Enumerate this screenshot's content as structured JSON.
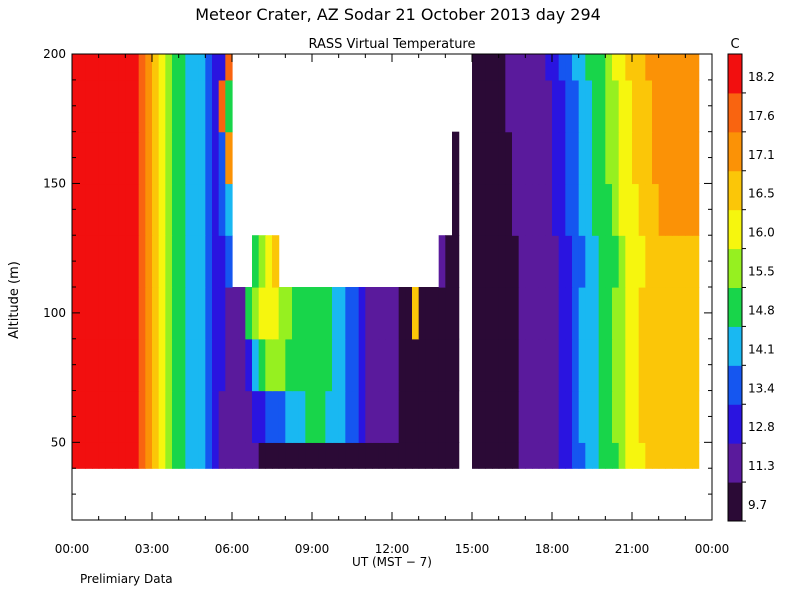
{
  "chart_data": {
    "type": "heatmap",
    "title": "Meteor Crater, AZ  Sodar  21 October 2013  day 294",
    "subtitle": "RASS Virtual Temperature",
    "xlabel": "UT  (MST − 7)",
    "ylabel": "Altitude (m)",
    "x_ticks": [
      "00:00",
      "03:00",
      "06:00",
      "09:00",
      "12:00",
      "15:00",
      "18:00",
      "21:00",
      "00:00"
    ],
    "xlim_hours": [
      0,
      24
    ],
    "y_ticks": [
      50,
      100,
      150,
      200
    ],
    "ylim": [
      20,
      200
    ],
    "colorbar": {
      "unit": "C",
      "levels": [
        9.7,
        11.3,
        12.8,
        13.4,
        14.1,
        14.8,
        15.5,
        16.0,
        16.5,
        17.1,
        17.6,
        18.2
      ],
      "colors": [
        "#2b0a36",
        "#5a1a9c",
        "#2a14e0",
        "#1556f0",
        "#19b8f2",
        "#18d54a",
        "#96f020",
        "#f6f60e",
        "#fbc608",
        "#fb9206",
        "#f96410",
        "#f20f0f"
      ]
    },
    "grid": false,
    "column_step_hours": 0.25,
    "altitude_levels": [
      40,
      60,
      80,
      100,
      120,
      140,
      160,
      180,
      200
    ],
    "data_rows_by_altitude": [
      [
        18.7,
        18.7,
        18.7,
        18.7,
        18.7,
        18.7,
        18.7,
        18.7,
        18.7,
        18.4,
        17.9,
        17.3,
        16.8,
        16.3,
        15.8,
        15.4,
        15.0,
        14.7,
        14.4,
        14.1,
        13.7,
        13.1,
        12.6,
        12.2,
        11.8,
        11.6,
        11.4,
        11.3,
        11.2,
        11.2,
        11.2,
        11.2,
        11.2,
        11.2,
        11.2,
        11.2,
        11.2,
        11.2,
        11.2,
        11.2,
        11.2,
        11.2,
        11.2,
        11.2,
        11.2,
        11.2,
        11.2,
        11.2,
        11.1,
        11.0,
        10.9,
        10.8,
        10.7,
        10.6,
        10.5,
        10.4,
        10.3,
        10.1,
        null,
        null,
        10.0,
        10.2,
        10.4,
        10.6,
        10.8,
        11.0,
        11.2,
        11.4,
        11.6,
        11.8,
        12.0,
        12.3,
        12.6,
        12.9,
        13.2,
        13.6,
        14.0,
        14.3,
        14.6,
        14.9,
        15.1,
        15.4,
        15.7,
        16.0,
        16.2,
        16.4,
        16.6,
        16.8,
        16.9,
        16.9,
        16.9,
        16.9,
        16.9,
        16.9
      ],
      [
        18.7,
        18.7,
        18.7,
        18.7,
        18.7,
        18.7,
        18.7,
        18.7,
        18.7,
        18.3,
        17.9,
        17.4,
        16.8,
        16.3,
        15.8,
        15.4,
        15.0,
        14.7,
        14.4,
        14.1,
        13.7,
        13.1,
        12.7,
        12.4,
        12.2,
        12.0,
        12.3,
        12.8,
        13.1,
        13.4,
        13.6,
        13.8,
        14.1,
        14.3,
        14.6,
        14.8,
        14.9,
        14.8,
        14.7,
        14.4,
        14.1,
        13.7,
        13.4,
        13.1,
        12.7,
        12.3,
        12.0,
        11.7,
        11.4,
        11.2,
        11.0,
        10.8,
        10.6,
        10.4,
        10.3,
        10.1,
        10.0,
        9.9,
        null,
        null,
        9.9,
        10.1,
        10.3,
        10.5,
        10.8,
        11.0,
        11.2,
        11.4,
        11.6,
        11.8,
        12.1,
        12.4,
        12.7,
        13.0,
        13.3,
        13.7,
        14.1,
        14.4,
        14.7,
        15.0,
        15.3,
        15.6,
        15.9,
        16.1,
        16.3,
        16.5,
        16.7,
        16.9,
        17.0,
        17.0,
        17.0,
        17.0,
        17.0,
        17.0
      ],
      [
        18.7,
        18.7,
        18.7,
        18.7,
        18.7,
        18.7,
        18.7,
        18.7,
        18.7,
        18.4,
        17.9,
        17.3,
        16.8,
        16.3,
        15.8,
        15.4,
        15.0,
        14.7,
        14.4,
        14.1,
        13.7,
        13.1,
        12.9,
        12.7,
        12.5,
        12.3,
        13.3,
        14.6,
        15.3,
        15.6,
        15.6,
        15.5,
        15.4,
        15.3,
        15.2,
        15.2,
        15.1,
        15.0,
        14.8,
        14.5,
        14.2,
        13.8,
        13.4,
        13.0,
        12.6,
        12.3,
        12.0,
        11.7,
        11.4,
        11.2,
        11.0,
        10.8,
        10.6,
        10.4,
        10.3,
        10.1,
        10.0,
        9.9,
        null,
        null,
        9.9,
        10.1,
        10.3,
        10.5,
        10.8,
        11.0,
        11.2,
        11.4,
        11.6,
        11.8,
        12.1,
        12.4,
        12.7,
        13.0,
        13.3,
        13.7,
        14.1,
        14.4,
        14.7,
        15.0,
        15.3,
        15.6,
        15.9,
        16.1,
        16.3,
        16.5,
        16.7,
        16.9,
        17.0,
        17.0,
        17.0,
        17.0,
        17.0,
        17.0
      ],
      [
        18.7,
        18.7,
        18.7,
        18.7,
        18.7,
        18.7,
        18.7,
        18.7,
        18.7,
        18.4,
        17.9,
        17.3,
        16.8,
        16.3,
        15.8,
        15.4,
        15.0,
        14.7,
        14.4,
        14.1,
        13.7,
        13.1,
        12.9,
        12.7,
        12.5,
        12.3,
        14.9,
        15.8,
        16.2,
        16.3,
        16.2,
        15.9,
        15.6,
        15.4,
        15.3,
        15.2,
        15.1,
        15.0,
        14.8,
        14.5,
        14.2,
        13.8,
        13.4,
        13.0,
        12.6,
        12.3,
        12.0,
        11.7,
        11.4,
        11.2,
        11.0,
        17.0,
        10.6,
        10.4,
        10.3,
        10.1,
        10.0,
        9.9,
        null,
        null,
        9.9,
        10.1,
        10.3,
        10.5,
        10.8,
        11.0,
        11.2,
        11.4,
        11.6,
        11.8,
        12.1,
        12.4,
        12.7,
        13.0,
        13.3,
        13.7,
        14.1,
        14.4,
        14.7,
        15.0,
        15.3,
        15.6,
        15.9,
        16.1,
        16.3,
        16.5,
        16.7,
        16.9,
        17.0,
        17.0,
        17.0,
        17.0,
        17.0,
        17.0
      ],
      [
        18.7,
        18.7,
        18.7,
        18.7,
        18.7,
        18.7,
        18.7,
        18.7,
        18.7,
        18.4,
        17.9,
        17.3,
        16.8,
        16.3,
        15.8,
        15.4,
        15.0,
        14.7,
        14.4,
        14.1,
        13.7,
        13.1,
        13.2,
        13.4,
        null,
        null,
        null,
        15.2,
        15.6,
        16.1,
        16.6,
        null,
        null,
        null,
        null,
        null,
        null,
        null,
        null,
        null,
        null,
        null,
        null,
        null,
        null,
        null,
        null,
        null,
        null,
        null,
        null,
        null,
        null,
        null,
        null,
        12.0,
        11.0,
        10.0,
        null,
        null,
        10.0,
        10.2,
        10.4,
        10.6,
        10.8,
        11.0,
        11.2,
        11.4,
        11.6,
        11.8,
        12.0,
        12.3,
        12.6,
        12.9,
        13.2,
        13.6,
        14.0,
        14.3,
        14.6,
        14.9,
        15.1,
        15.4,
        15.7,
        16.0,
        16.2,
        16.4,
        16.6,
        16.8,
        16.9,
        16.9,
        16.9,
        16.9,
        16.9,
        16.9
      ],
      [
        18.7,
        18.7,
        18.7,
        18.7,
        18.7,
        18.7,
        18.7,
        18.7,
        18.7,
        18.4,
        17.9,
        17.3,
        16.8,
        16.3,
        15.8,
        15.4,
        15.0,
        14.7,
        14.4,
        14.1,
        13.7,
        13.1,
        13.9,
        14.4,
        null,
        null,
        null,
        null,
        null,
        null,
        null,
        null,
        null,
        null,
        null,
        null,
        null,
        null,
        null,
        null,
        null,
        null,
        null,
        null,
        null,
        null,
        null,
        null,
        null,
        null,
        null,
        null,
        null,
        null,
        null,
        null,
        null,
        10.3,
        null,
        null,
        10.1,
        10.3,
        10.5,
        10.7,
        10.9,
        11.1,
        11.3,
        11.5,
        11.7,
        11.9,
        12.2,
        12.5,
        12.8,
        13.1,
        13.4,
        13.8,
        14.2,
        14.5,
        14.8,
        15.1,
        15.4,
        15.7,
        16.0,
        16.2,
        16.4,
        16.6,
        16.8,
        17.0,
        17.1,
        17.1,
        17.1,
        17.1,
        17.1,
        17.1
      ],
      [
        18.7,
        18.7,
        18.7,
        18.7,
        18.7,
        18.7,
        18.7,
        18.7,
        18.7,
        18.4,
        17.9,
        17.3,
        16.8,
        16.3,
        15.8,
        15.4,
        15.0,
        14.7,
        14.4,
        14.1,
        13.7,
        13.1,
        13.6,
        17.5,
        null,
        null,
        null,
        null,
        null,
        null,
        null,
        null,
        null,
        null,
        null,
        null,
        null,
        null,
        null,
        null,
        null,
        null,
        null,
        null,
        null,
        null,
        null,
        null,
        null,
        null,
        null,
        null,
        null,
        null,
        null,
        null,
        null,
        10.3,
        null,
        null,
        10.2,
        10.4,
        10.6,
        10.8,
        11.0,
        11.2,
        11.4,
        11.6,
        11.8,
        12.0,
        12.3,
        12.6,
        12.9,
        13.2,
        13.5,
        13.9,
        14.3,
        14.6,
        14.9,
        15.2,
        15.5,
        15.8,
        16.1,
        16.3,
        16.5,
        16.7,
        16.9,
        17.1,
        17.2,
        17.2,
        17.2,
        17.2,
        17.2,
        17.2
      ],
      [
        18.7,
        18.7,
        18.7,
        18.7,
        18.7,
        18.7,
        18.7,
        18.7,
        18.7,
        18.4,
        17.9,
        17.3,
        16.8,
        16.3,
        15.8,
        15.4,
        15.0,
        14.7,
        14.4,
        14.1,
        13.7,
        13.1,
        17.8,
        15.2,
        null,
        null,
        null,
        null,
        null,
        null,
        null,
        null,
        null,
        null,
        null,
        null,
        null,
        null,
        null,
        null,
        null,
        null,
        null,
        null,
        null,
        null,
        null,
        null,
        null,
        null,
        null,
        null,
        null,
        null,
        null,
        null,
        null,
        null,
        null,
        null,
        10.3,
        10.5,
        10.7,
        10.9,
        11.1,
        11.3,
        11.5,
        11.7,
        11.9,
        12.1,
        12.4,
        12.7,
        13.0,
        13.3,
        13.6,
        14.0,
        14.4,
        14.7,
        15.0,
        15.3,
        15.6,
        15.9,
        16.2,
        16.4,
        16.6,
        16.8,
        17.0,
        17.2,
        17.3,
        17.3,
        17.3,
        17.3,
        17.3,
        17.3
      ],
      [
        18.7,
        18.7,
        18.7,
        18.7,
        18.7,
        18.7,
        18.7,
        18.7,
        18.7,
        18.4,
        17.9,
        17.3,
        16.8,
        16.3,
        15.8,
        15.4,
        15.0,
        14.7,
        14.4,
        14.1,
        13.7,
        13.1,
        13.1,
        18.0,
        null,
        null,
        null,
        null,
        null,
        null,
        null,
        null,
        null,
        null,
        null,
        null,
        null,
        null,
        null,
        null,
        null,
        null,
        null,
        null,
        null,
        null,
        null,
        null,
        null,
        null,
        null,
        null,
        null,
        null,
        null,
        null,
        null,
        null,
        null,
        null,
        10.4,
        10.6,
        10.8,
        11.0,
        11.2,
        11.4,
        11.6,
        11.8,
        12.0,
        12.2,
        12.5,
        12.8,
        13.1,
        13.4,
        13.7,
        14.1,
        14.5,
        14.8,
        15.1,
        15.4,
        15.7,
        16.0,
        16.3,
        16.5,
        16.7,
        16.9,
        17.1,
        17.3,
        17.4,
        17.4,
        17.4,
        17.4,
        17.4,
        17.4
      ]
    ]
  },
  "footer": {
    "note": "Prelimiary Data"
  }
}
